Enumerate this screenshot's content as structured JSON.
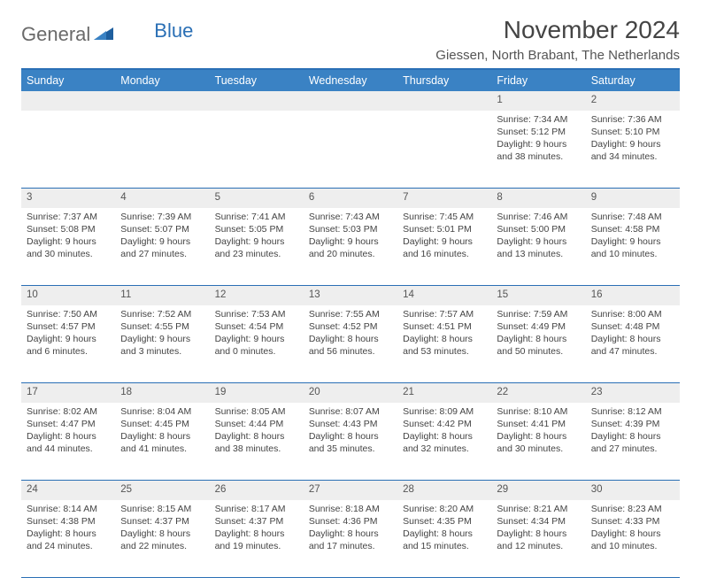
{
  "brand": {
    "part1": "General",
    "part2": "Blue"
  },
  "title": "November 2024",
  "location": "Giessen, North Brabant, The Netherlands",
  "colors": {
    "header_bg": "#3a82c4",
    "rule": "#2a6fb5",
    "daynum_bg": "#eeeeee",
    "text": "#444444",
    "brand_gray": "#6a6a6a",
    "brand_blue": "#2a6fb5"
  },
  "weekdays": [
    "Sunday",
    "Monday",
    "Tuesday",
    "Wednesday",
    "Thursday",
    "Friday",
    "Saturday"
  ],
  "weeks": [
    [
      null,
      null,
      null,
      null,
      null,
      {
        "d": "1",
        "sunrise": "7:34 AM",
        "sunset": "5:12 PM",
        "day_h": "9",
        "day_m": "38"
      },
      {
        "d": "2",
        "sunrise": "7:36 AM",
        "sunset": "5:10 PM",
        "day_h": "9",
        "day_m": "34"
      }
    ],
    [
      {
        "d": "3",
        "sunrise": "7:37 AM",
        "sunset": "5:08 PM",
        "day_h": "9",
        "day_m": "30"
      },
      {
        "d": "4",
        "sunrise": "7:39 AM",
        "sunset": "5:07 PM",
        "day_h": "9",
        "day_m": "27"
      },
      {
        "d": "5",
        "sunrise": "7:41 AM",
        "sunset": "5:05 PM",
        "day_h": "9",
        "day_m": "23"
      },
      {
        "d": "6",
        "sunrise": "7:43 AM",
        "sunset": "5:03 PM",
        "day_h": "9",
        "day_m": "20"
      },
      {
        "d": "7",
        "sunrise": "7:45 AM",
        "sunset": "5:01 PM",
        "day_h": "9",
        "day_m": "16"
      },
      {
        "d": "8",
        "sunrise": "7:46 AM",
        "sunset": "5:00 PM",
        "day_h": "9",
        "day_m": "13"
      },
      {
        "d": "9",
        "sunrise": "7:48 AM",
        "sunset": "4:58 PM",
        "day_h": "9",
        "day_m": "10"
      }
    ],
    [
      {
        "d": "10",
        "sunrise": "7:50 AM",
        "sunset": "4:57 PM",
        "day_h": "9",
        "day_m": "6"
      },
      {
        "d": "11",
        "sunrise": "7:52 AM",
        "sunset": "4:55 PM",
        "day_h": "9",
        "day_m": "3"
      },
      {
        "d": "12",
        "sunrise": "7:53 AM",
        "sunset": "4:54 PM",
        "day_h": "9",
        "day_m": "0"
      },
      {
        "d": "13",
        "sunrise": "7:55 AM",
        "sunset": "4:52 PM",
        "day_h": "8",
        "day_m": "56"
      },
      {
        "d": "14",
        "sunrise": "7:57 AM",
        "sunset": "4:51 PM",
        "day_h": "8",
        "day_m": "53"
      },
      {
        "d": "15",
        "sunrise": "7:59 AM",
        "sunset": "4:49 PM",
        "day_h": "8",
        "day_m": "50"
      },
      {
        "d": "16",
        "sunrise": "8:00 AM",
        "sunset": "4:48 PM",
        "day_h": "8",
        "day_m": "47"
      }
    ],
    [
      {
        "d": "17",
        "sunrise": "8:02 AM",
        "sunset": "4:47 PM",
        "day_h": "8",
        "day_m": "44"
      },
      {
        "d": "18",
        "sunrise": "8:04 AM",
        "sunset": "4:45 PM",
        "day_h": "8",
        "day_m": "41"
      },
      {
        "d": "19",
        "sunrise": "8:05 AM",
        "sunset": "4:44 PM",
        "day_h": "8",
        "day_m": "38"
      },
      {
        "d": "20",
        "sunrise": "8:07 AM",
        "sunset": "4:43 PM",
        "day_h": "8",
        "day_m": "35"
      },
      {
        "d": "21",
        "sunrise": "8:09 AM",
        "sunset": "4:42 PM",
        "day_h": "8",
        "day_m": "32"
      },
      {
        "d": "22",
        "sunrise": "8:10 AM",
        "sunset": "4:41 PM",
        "day_h": "8",
        "day_m": "30"
      },
      {
        "d": "23",
        "sunrise": "8:12 AM",
        "sunset": "4:39 PM",
        "day_h": "8",
        "day_m": "27"
      }
    ],
    [
      {
        "d": "24",
        "sunrise": "8:14 AM",
        "sunset": "4:38 PM",
        "day_h": "8",
        "day_m": "24"
      },
      {
        "d": "25",
        "sunrise": "8:15 AM",
        "sunset": "4:37 PM",
        "day_h": "8",
        "day_m": "22"
      },
      {
        "d": "26",
        "sunrise": "8:17 AM",
        "sunset": "4:37 PM",
        "day_h": "8",
        "day_m": "19"
      },
      {
        "d": "27",
        "sunrise": "8:18 AM",
        "sunset": "4:36 PM",
        "day_h": "8",
        "day_m": "17"
      },
      {
        "d": "28",
        "sunrise": "8:20 AM",
        "sunset": "4:35 PM",
        "day_h": "8",
        "day_m": "15"
      },
      {
        "d": "29",
        "sunrise": "8:21 AM",
        "sunset": "4:34 PM",
        "day_h": "8",
        "day_m": "12"
      },
      {
        "d": "30",
        "sunrise": "8:23 AM",
        "sunset": "4:33 PM",
        "day_h": "8",
        "day_m": "10"
      }
    ]
  ],
  "labels": {
    "sunrise": "Sunrise:",
    "sunset": "Sunset:",
    "daylight": "Daylight:",
    "hours": "hours",
    "and": "and",
    "minutes": "minutes."
  }
}
